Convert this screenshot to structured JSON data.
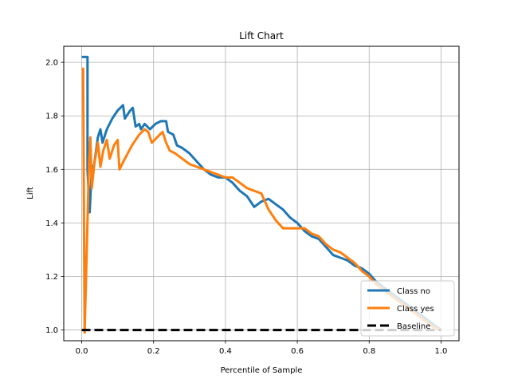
{
  "chart_data": {
    "type": "line",
    "title": "Lift Chart",
    "xlabel": "Percentile of Sample",
    "ylabel": "Lift",
    "xlim": [
      -0.05,
      1.05
    ],
    "ylim": [
      0.96,
      2.06
    ],
    "xticks": [
      0.0,
      0.2,
      0.4,
      0.6,
      0.8,
      1.0
    ],
    "xtick_labels": [
      "0.0",
      "0.2",
      "0.4",
      "0.6",
      "0.8",
      "1.0"
    ],
    "yticks": [
      1.0,
      1.2,
      1.4,
      1.6,
      1.8,
      2.0
    ],
    "ytick_labels": [
      "1.0",
      "1.2",
      "1.4",
      "1.6",
      "1.8",
      "2.0"
    ],
    "grid": true,
    "legend_position": "lower-right",
    "series": [
      {
        "name": "Class no",
        "color": "#1f77b4",
        "dash": "solid",
        "points": [
          [
            0.0,
            2.02
          ],
          [
            0.016,
            2.02
          ],
          [
            0.016,
            1.6
          ],
          [
            0.022,
            1.44
          ],
          [
            0.028,
            1.6
          ],
          [
            0.035,
            1.62
          ],
          [
            0.045,
            1.72
          ],
          [
            0.052,
            1.75
          ],
          [
            0.058,
            1.7
          ],
          [
            0.07,
            1.75
          ],
          [
            0.085,
            1.79
          ],
          [
            0.1,
            1.82
          ],
          [
            0.115,
            1.84
          ],
          [
            0.12,
            1.79
          ],
          [
            0.135,
            1.82
          ],
          [
            0.142,
            1.83
          ],
          [
            0.15,
            1.76
          ],
          [
            0.16,
            1.77
          ],
          [
            0.165,
            1.75
          ],
          [
            0.175,
            1.77
          ],
          [
            0.19,
            1.75
          ],
          [
            0.205,
            1.77
          ],
          [
            0.22,
            1.78
          ],
          [
            0.235,
            1.78
          ],
          [
            0.24,
            1.74
          ],
          [
            0.255,
            1.73
          ],
          [
            0.265,
            1.69
          ],
          [
            0.28,
            1.68
          ],
          [
            0.3,
            1.66
          ],
          [
            0.32,
            1.63
          ],
          [
            0.34,
            1.6
          ],
          [
            0.36,
            1.58
          ],
          [
            0.38,
            1.57
          ],
          [
            0.4,
            1.57
          ],
          [
            0.42,
            1.55
          ],
          [
            0.44,
            1.52
          ],
          [
            0.46,
            1.5
          ],
          [
            0.48,
            1.46
          ],
          [
            0.5,
            1.48
          ],
          [
            0.52,
            1.49
          ],
          [
            0.54,
            1.47
          ],
          [
            0.56,
            1.45
          ],
          [
            0.58,
            1.42
          ],
          [
            0.6,
            1.4
          ],
          [
            0.62,
            1.37
          ],
          [
            0.64,
            1.35
          ],
          [
            0.66,
            1.34
          ],
          [
            0.68,
            1.31
          ],
          [
            0.7,
            1.28
          ],
          [
            0.72,
            1.27
          ],
          [
            0.74,
            1.26
          ],
          [
            0.76,
            1.24
          ],
          [
            0.78,
            1.23
          ],
          [
            0.8,
            1.21
          ],
          [
            0.82,
            1.18
          ],
          [
            0.84,
            1.16
          ],
          [
            0.86,
            1.14
          ],
          [
            0.88,
            1.12
          ],
          [
            0.9,
            1.1
          ],
          [
            0.92,
            1.08
          ],
          [
            0.94,
            1.06
          ],
          [
            0.96,
            1.04
          ],
          [
            0.98,
            1.02
          ],
          [
            1.0,
            1.0
          ]
        ]
      },
      {
        "name": "Class yes",
        "color": "#ff7f0e",
        "dash": "solid",
        "points": [
          [
            0.004,
            1.98
          ],
          [
            0.008,
            0.99
          ],
          [
            0.014,
            1.3
          ],
          [
            0.02,
            1.62
          ],
          [
            0.024,
            1.72
          ],
          [
            0.028,
            1.53
          ],
          [
            0.035,
            1.62
          ],
          [
            0.045,
            1.7
          ],
          [
            0.052,
            1.61
          ],
          [
            0.06,
            1.67
          ],
          [
            0.07,
            1.71
          ],
          [
            0.078,
            1.64
          ],
          [
            0.09,
            1.69
          ],
          [
            0.1,
            1.71
          ],
          [
            0.105,
            1.6
          ],
          [
            0.12,
            1.64
          ],
          [
            0.14,
            1.69
          ],
          [
            0.16,
            1.73
          ],
          [
            0.175,
            1.75
          ],
          [
            0.185,
            1.74
          ],
          [
            0.195,
            1.7
          ],
          [
            0.21,
            1.72
          ],
          [
            0.225,
            1.74
          ],
          [
            0.235,
            1.7
          ],
          [
            0.245,
            1.67
          ],
          [
            0.26,
            1.66
          ],
          [
            0.28,
            1.64
          ],
          [
            0.3,
            1.62
          ],
          [
            0.32,
            1.61
          ],
          [
            0.34,
            1.6
          ],
          [
            0.36,
            1.59
          ],
          [
            0.38,
            1.58
          ],
          [
            0.4,
            1.57
          ],
          [
            0.42,
            1.57
          ],
          [
            0.44,
            1.55
          ],
          [
            0.46,
            1.53
          ],
          [
            0.48,
            1.52
          ],
          [
            0.5,
            1.51
          ],
          [
            0.52,
            1.45
          ],
          [
            0.54,
            1.41
          ],
          [
            0.56,
            1.38
          ],
          [
            0.58,
            1.38
          ],
          [
            0.6,
            1.38
          ],
          [
            0.62,
            1.38
          ],
          [
            0.64,
            1.36
          ],
          [
            0.66,
            1.35
          ],
          [
            0.68,
            1.32
          ],
          [
            0.7,
            1.3
          ],
          [
            0.72,
            1.29
          ],
          [
            0.74,
            1.27
          ],
          [
            0.76,
            1.25
          ],
          [
            0.78,
            1.22
          ],
          [
            0.8,
            1.2
          ],
          [
            0.82,
            1.17
          ],
          [
            0.84,
            1.15
          ],
          [
            0.86,
            1.13
          ],
          [
            0.88,
            1.11
          ],
          [
            0.9,
            1.09
          ],
          [
            0.92,
            1.07
          ],
          [
            0.94,
            1.05
          ],
          [
            0.96,
            1.03
          ],
          [
            0.98,
            1.01
          ],
          [
            1.0,
            1.0
          ]
        ]
      },
      {
        "name": "Baseline",
        "color": "#000000",
        "dash": "dashed",
        "points": [
          [
            0.0,
            1.0
          ],
          [
            1.0,
            1.0
          ]
        ]
      }
    ]
  }
}
